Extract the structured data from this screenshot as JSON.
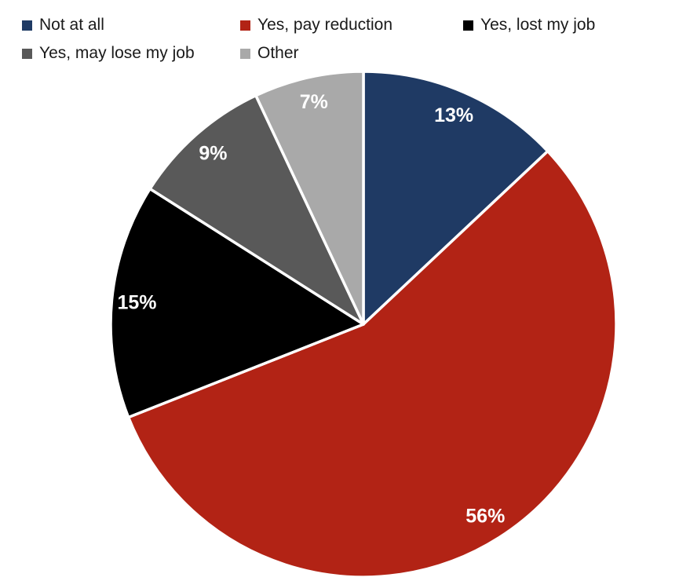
{
  "chart_data": {
    "type": "pie",
    "title": "",
    "categories": [
      "Not at all",
      "Yes, pay reduction",
      "Yes, lost my job",
      "Yes, may lose my job",
      "Other"
    ],
    "values": [
      13,
      56,
      15,
      9,
      7
    ],
    "data_labels": [
      "13%",
      "56%",
      "15%",
      "9%",
      "7%"
    ],
    "colors": [
      "#1F3A64",
      "#B22315",
      "#000000",
      "#595959",
      "#A9A9A9"
    ],
    "start_angle_deg": 0,
    "direction": "clockwise",
    "legend_position": "top",
    "slice_separator_color": "#FFFFFF",
    "data_label_color": "#FFFFFF",
    "legend_text_color": "#1A1A1A",
    "background_color": "#FFFFFF"
  }
}
